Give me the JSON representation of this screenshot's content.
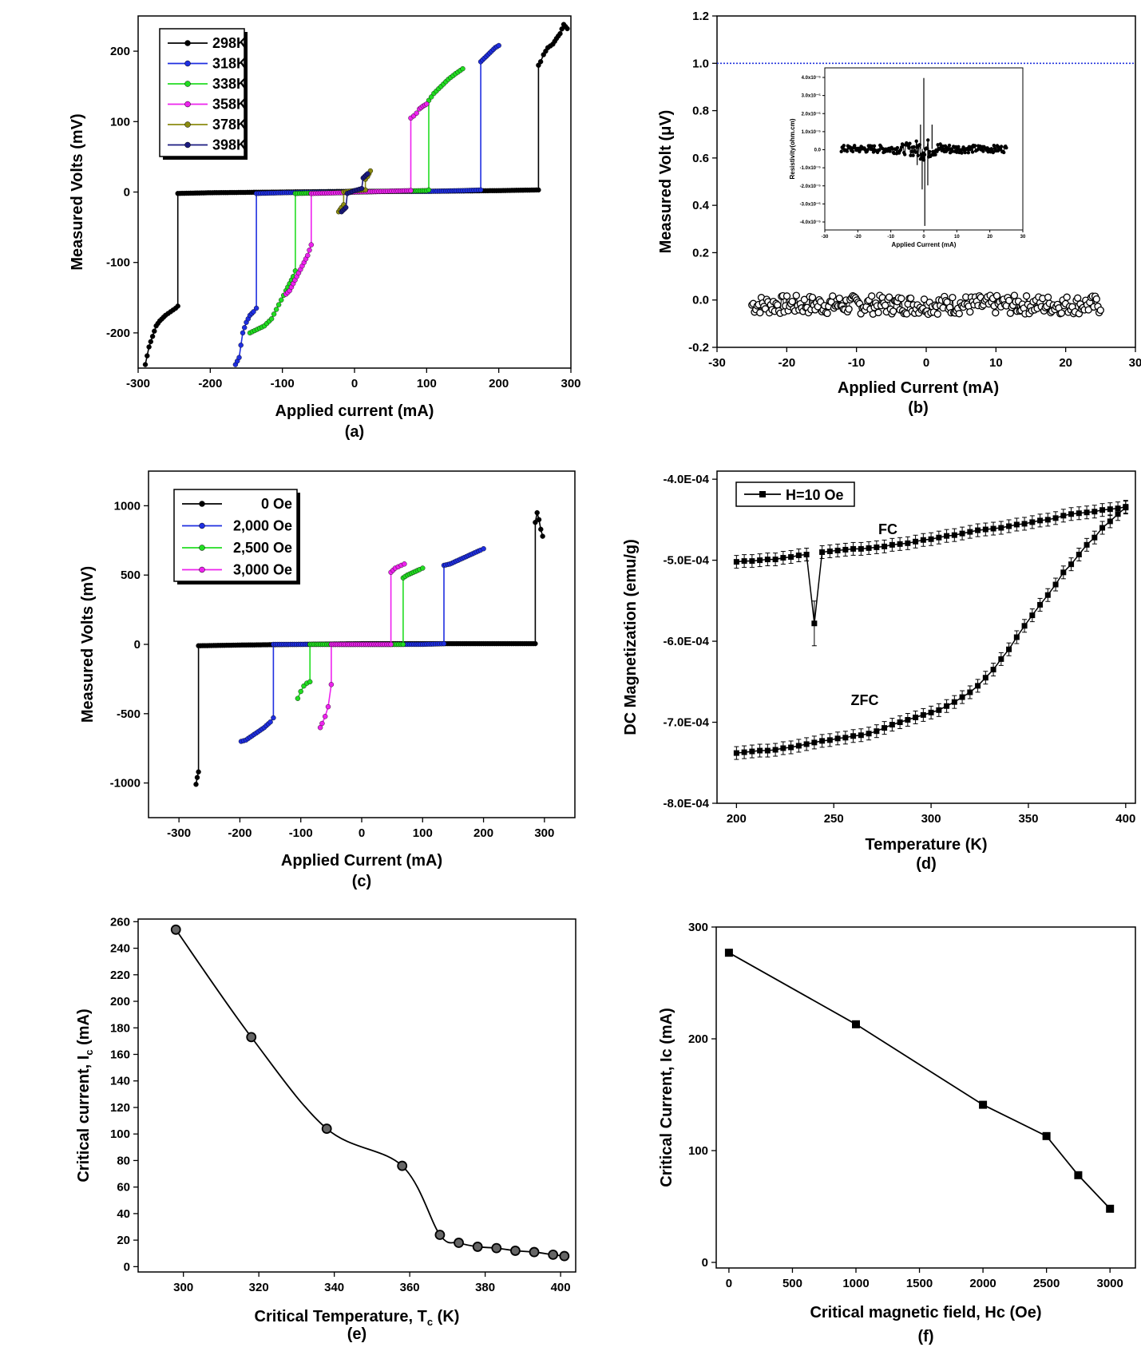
{
  "chart_data": [
    {
      "id": "a",
      "type": "line",
      "panel_label": "(a)",
      "xlabel": "Applied current (mA)",
      "ylabel": "Measured Volts (mV)",
      "xlim": [
        -300,
        300
      ],
      "ylim": [
        -250,
        250
      ],
      "xticks": [
        -300,
        -200,
        -100,
        0,
        100,
        200,
        300
      ],
      "yticks": [
        -200,
        -100,
        0,
        100,
        200
      ],
      "series": [
        {
          "name": "298K",
          "color": "#000000",
          "x": [
            -290,
            -285,
            -280,
            -275,
            -270,
            -262,
            -255,
            -248,
            -245,
            -245,
            -200,
            -100,
            0,
            100,
            200,
            255,
            255,
            258,
            262,
            268,
            275,
            280,
            285,
            290,
            295
          ],
          "y": [
            -245,
            -220,
            -205,
            -190,
            -183,
            -175,
            -170,
            -165,
            -162,
            -2,
            -1,
            0,
            1,
            1,
            2,
            3,
            180,
            185,
            195,
            205,
            210,
            218,
            225,
            238,
            232
          ]
        },
        {
          "name": "318K",
          "color": "#1f2fe0",
          "x": [
            -165,
            -160,
            -155,
            -150,
            -145,
            -140,
            -136,
            -136,
            -100,
            -50,
            0,
            50,
            100,
            150,
            175,
            175,
            180,
            185,
            190,
            195,
            200
          ],
          "y": [
            -245,
            -235,
            -200,
            -185,
            -175,
            -170,
            -165,
            -2,
            -1,
            0,
            0,
            1,
            1,
            2,
            3,
            185,
            190,
            195,
            200,
            205,
            208
          ]
        },
        {
          "name": "338K",
          "color": "#22dd22",
          "x": [
            -145,
            -135,
            -125,
            -115,
            -105,
            -95,
            -90,
            -85,
            -82,
            -82,
            -40,
            0,
            50,
            100,
            103,
            103,
            110,
            120,
            130,
            140,
            150
          ],
          "y": [
            -200,
            -195,
            -190,
            -180,
            -160,
            -140,
            -130,
            -120,
            -112,
            -2,
            -1,
            0,
            1,
            2,
            3,
            130,
            140,
            150,
            160,
            168,
            175
          ]
        },
        {
          "name": "358K",
          "color": "#ee22ee",
          "x": [
            -95,
            -90,
            -85,
            -80,
            -75,
            -70,
            -65,
            -60,
            -60,
            -20,
            0,
            40,
            78,
            78,
            82,
            86,
            90,
            95,
            100
          ],
          "y": [
            -145,
            -140,
            -130,
            -120,
            -110,
            -100,
            -90,
            -75,
            -2,
            -1,
            0,
            1,
            2,
            105,
            108,
            112,
            118,
            122,
            125
          ]
        },
        {
          "name": "378K",
          "color": "#8b8b10",
          "x": [
            -22,
            -20,
            -18,
            -15,
            -15,
            0,
            15,
            15,
            18,
            20,
            22
          ],
          "y": [
            -28,
            -25,
            -22,
            -18,
            0,
            2,
            3,
            18,
            22,
            26,
            30
          ]
        },
        {
          "name": "398K",
          "color": "#1a1a80",
          "x": [
            -18,
            -16,
            -14,
            -12,
            -10,
            0,
            10,
            12,
            14,
            16,
            18
          ],
          "y": [
            -28,
            -26,
            -24,
            -22,
            -2,
            2,
            5,
            20,
            22,
            24,
            26
          ]
        }
      ]
    },
    {
      "id": "b",
      "type": "scatter",
      "panel_label": "(b)",
      "xlabel": "Applied Current (mA)",
      "ylabel": "Measured Volt (μV)",
      "xlim": [
        -30,
        30
      ],
      "ylim": [
        -0.2,
        1.2
      ],
      "xticks": [
        -30,
        -20,
        -10,
        0,
        10,
        20,
        30
      ],
      "yticks": [
        -0.2,
        0.0,
        0.2,
        0.4,
        0.6,
        0.8,
        1.0,
        1.2
      ],
      "ytick_labels": [
        "-0.2",
        "0.0",
        "0.2",
        "0.4",
        "0.6",
        "0.8",
        "1.0",
        "1.2"
      ],
      "xtick_labels": [
        "-30",
        "-20",
        "-10",
        "0",
        "10",
        "20",
        "30"
      ],
      "reference_line_y": 1.0,
      "reference_color": "#2233dd",
      "points": {
        "x_start": -25,
        "x_end": 25,
        "count": 260,
        "noise_amplitude": 0.04,
        "center": -0.02
      },
      "inset": {
        "xlabel": "Applied Current (mA)",
        "ylabel": "Resistivity(ohm.cm)",
        "xlim": [
          -30,
          30
        ],
        "ylim": [
          -4.0,
          4.0
        ],
        "xticks": [
          -30,
          -20,
          -10,
          0,
          10,
          20,
          30
        ],
        "ytick_labels": [
          "4.0x10⁻⁵",
          "3.0x10⁻⁵",
          "2.0x10⁻⁵",
          "1.0x10⁻⁵",
          "0.0",
          "-1.0x10⁻⁵",
          "-2.0x10⁻⁵",
          "-3.0x10⁻⁵",
          "-4.0x10⁻⁵"
        ],
        "spikes": [
          {
            "x": 0,
            "y": 3.5
          },
          {
            "x": 0.3,
            "y": -3.8
          },
          {
            "x": -1.0,
            "y": 1.2
          },
          {
            "x": 1.2,
            "y": -1.8
          },
          {
            "x": -0.5,
            "y": -2.0
          },
          {
            "x": 2.5,
            "y": 1.2
          },
          {
            "x": -2.0,
            "y": -0.8
          }
        ]
      }
    },
    {
      "id": "c",
      "type": "line",
      "panel_label": "(c)",
      "xlabel": "Applied Current (mA)",
      "ylabel": "Measured Volts (mV)",
      "xlim": [
        -350,
        350
      ],
      "ylim": [
        -1250,
        1250
      ],
      "xticks": [
        -300,
        -200,
        -100,
        0,
        100,
        200,
        300
      ],
      "yticks": [
        -1000,
        -500,
        0,
        500,
        1000
      ],
      "series": [
        {
          "name": "0 Oe",
          "color": "#000000",
          "x": [
            -272,
            -270,
            -268,
            -268,
            -200,
            -100,
            0,
            100,
            200,
            285,
            285,
            288,
            291,
            294,
            297
          ],
          "y": [
            -1010,
            -960,
            -920,
            -10,
            -5,
            0,
            5,
            5,
            5,
            5,
            880,
            950,
            900,
            830,
            780
          ]
        },
        {
          "name": "2,000 Oe",
          "color": "#1f2fe0",
          "x": [
            -198,
            -190,
            -180,
            -170,
            -160,
            -150,
            -145,
            -145,
            -100,
            -50,
            0,
            50,
            100,
            135,
            135,
            145,
            155,
            165,
            175,
            185,
            195,
            200
          ],
          "y": [
            -700,
            -690,
            -660,
            -630,
            -600,
            -560,
            -530,
            0,
            0,
            0,
            0,
            0,
            0,
            5,
            570,
            580,
            600,
            620,
            640,
            660,
            680,
            690
          ]
        },
        {
          "name": "2,500 Oe",
          "color": "#22dd22",
          "x": [
            -105,
            -100,
            -95,
            -90,
            -85,
            -85,
            -40,
            0,
            40,
            68,
            68,
            75,
            85,
            95,
            100
          ],
          "y": [
            -390,
            -340,
            -300,
            -280,
            -270,
            0,
            0,
            0,
            0,
            0,
            480,
            500,
            520,
            540,
            550
          ]
        },
        {
          "name": "3,000 Oe",
          "color": "#ee22ee",
          "x": [
            -68,
            -65,
            -60,
            -55,
            -50,
            -50,
            -20,
            0,
            20,
            48,
            48,
            55,
            60,
            65,
            70
          ],
          "y": [
            -600,
            -570,
            -520,
            -450,
            -290,
            0,
            0,
            0,
            0,
            0,
            520,
            550,
            560,
            570,
            580
          ]
        }
      ]
    },
    {
      "id": "d",
      "type": "line",
      "panel_label": "(d)",
      "xlabel": "Temperature (K)",
      "ylabel": "DC Magnetization (emu/g)",
      "xlim": [
        190,
        405
      ],
      "ylim": [
        -0.0008,
        -0.00039
      ],
      "xticks": [
        200,
        250,
        300,
        350,
        400
      ],
      "yticks": [
        -0.0008,
        -0.0007,
        -0.0006,
        -0.0005,
        -0.0004
      ],
      "ytick_labels": [
        "-8.0E-04",
        "-7.0E-04",
        "-6.0E-04",
        "-5.0E-04",
        "-4.0E-04"
      ],
      "legend": "H=10 Oe",
      "annotations": [
        "FC",
        "ZFC"
      ],
      "series": [
        {
          "name": "FC",
          "x": [
            200,
            204,
            208,
            212,
            216,
            220,
            224,
            228,
            232,
            236,
            240,
            244,
            248,
            252,
            256,
            260,
            264,
            268,
            272,
            276,
            280,
            284,
            288,
            292,
            296,
            300,
            304,
            308,
            312,
            316,
            320,
            324,
            328,
            332,
            336,
            340,
            344,
            348,
            352,
            356,
            360,
            364,
            368,
            372,
            376,
            380,
            384,
            388,
            392,
            396,
            400
          ],
          "y": [
            -0.000502,
            -0.000501,
            -0.000501,
            -0.0005,
            -0.000499,
            -0.000499,
            -0.000497,
            -0.000496,
            -0.000494,
            -0.000493,
            -0.000578,
            -0.00049,
            -0.000489,
            -0.000488,
            -0.000487,
            -0.000486,
            -0.000486,
            -0.000485,
            -0.000484,
            -0.000483,
            -0.000481,
            -0.00048,
            -0.000479,
            -0.000477,
            -0.000475,
            -0.000474,
            -0.000472,
            -0.00047,
            -0.000469,
            -0.000467,
            -0.000465,
            -0.000463,
            -0.000462,
            -0.000461,
            -0.00046,
            -0.000458,
            -0.000456,
            -0.000455,
            -0.000453,
            -0.000451,
            -0.00045,
            -0.000448,
            -0.000445,
            -0.000443,
            -0.000442,
            -0.000441,
            -0.00044,
            -0.000438,
            -0.000437,
            -0.000436,
            -0.000434
          ]
        },
        {
          "name": "ZFC",
          "x": [
            200,
            204,
            208,
            212,
            216,
            220,
            224,
            228,
            232,
            236,
            240,
            244,
            248,
            252,
            256,
            260,
            264,
            268,
            272,
            276,
            280,
            284,
            288,
            292,
            296,
            300,
            304,
            308,
            312,
            316,
            320,
            324,
            328,
            332,
            336,
            340,
            344,
            348,
            352,
            356,
            360,
            364,
            368,
            372,
            376,
            380,
            384,
            388,
            392,
            396,
            400
          ],
          "y": [
            -0.000738,
            -0.000737,
            -0.000736,
            -0.000735,
            -0.000735,
            -0.000734,
            -0.000732,
            -0.000731,
            -0.000729,
            -0.000727,
            -0.000725,
            -0.000723,
            -0.000722,
            -0.00072,
            -0.000719,
            -0.000717,
            -0.000716,
            -0.000714,
            -0.000711,
            -0.000707,
            -0.000703,
            -0.0007,
            -0.000697,
            -0.000694,
            -0.000691,
            -0.000688,
            -0.000685,
            -0.00068,
            -0.000675,
            -0.000669,
            -0.000663,
            -0.000655,
            -0.000645,
            -0.000635,
            -0.000622,
            -0.00061,
            -0.000595,
            -0.000581,
            -0.000568,
            -0.000555,
            -0.000543,
            -0.00053,
            -0.000515,
            -0.000505,
            -0.000493,
            -0.000481,
            -0.000472,
            -0.00046,
            -0.000452,
            -0.000443,
            -0.000435
          ]
        }
      ]
    },
    {
      "id": "e",
      "type": "line",
      "panel_label": "(e)",
      "xlabel_main": "Critical Temperature, T",
      "xlabel_sub": "c",
      "xlabel_end": " (K)",
      "ylabel_main": "Critical current, I",
      "ylabel_sub": "c",
      "ylabel_end": " (mA)",
      "xlim": [
        288,
        404
      ],
      "ylim": [
        -4,
        262
      ],
      "xticks": [
        300,
        320,
        340,
        360,
        380,
        400
      ],
      "yticks": [
        0,
        20,
        40,
        60,
        80,
        100,
        120,
        140,
        160,
        180,
        200,
        220,
        240,
        260
      ],
      "x": [
        298,
        318,
        338,
        358,
        368,
        373,
        378,
        383,
        388,
        393,
        398,
        401
      ],
      "y": [
        254,
        173,
        104,
        76,
        24,
        18,
        15,
        14,
        12,
        11,
        9,
        8
      ]
    },
    {
      "id": "f",
      "type": "line",
      "panel_label": "(f)",
      "xlabel": "Critical magnetic field, Hc (Oe)",
      "ylabel": "Critical Current, Ic (mA)",
      "xlim": [
        -100,
        3200
      ],
      "ylim": [
        -5,
        300
      ],
      "xticks": [
        0,
        500,
        1000,
        1500,
        2000,
        2500,
        3000
      ],
      "yticks": [
        0,
        100,
        200,
        300
      ],
      "x": [
        0,
        1000,
        2000,
        2500,
        2750,
        3000
      ],
      "y": [
        277,
        213,
        141,
        113,
        78,
        48
      ]
    }
  ]
}
